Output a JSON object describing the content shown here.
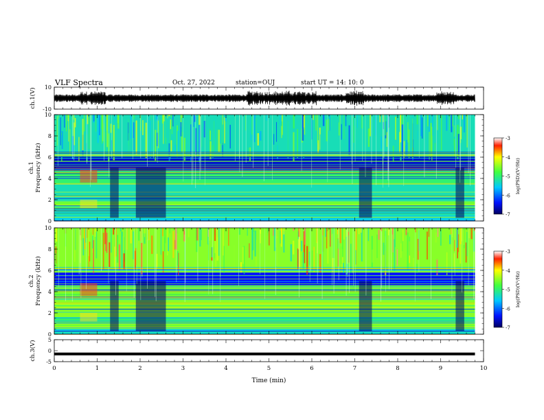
{
  "header": {
    "title": "VLF Spectra",
    "date": "Oct. 27, 2022",
    "station": "station=OUJ",
    "start": "start  UT =  14: 10: 0"
  },
  "chart_data": [
    {
      "type": "line",
      "name": "ch1-waveform",
      "ylabel": "ch.1(V)",
      "ylim": [
        -10,
        10
      ],
      "yticks": [
        "10",
        "-10"
      ],
      "xlim": [
        0,
        10
      ],
      "notes": "noisy VLF waveform, amplitude mostly about ±3 V with bursts near 1 min, 4.5–6 min and 7 min"
    },
    {
      "type": "heatmap",
      "name": "ch1-spectrogram",
      "ylabel": "ch.1\nFrequency  (kHz)",
      "ylim": [
        0,
        10
      ],
      "yticks": [
        "0",
        "2",
        "4",
        "6",
        "8",
        "10"
      ],
      "xlim": [
        0,
        9.8
      ],
      "colorbar": {
        "label": "log(PSD)(V²/Hz)",
        "range": [
          -7,
          -3
        ],
        "ticks": [
          "-3",
          "-4",
          "-5",
          "-6",
          "-7"
        ]
      },
      "bands": [
        {
          "freq": [
            0,
            0.5
          ],
          "value": -5.5
        },
        {
          "freq": [
            1.2,
            1.8
          ],
          "value": -4.6
        },
        {
          "freq": [
            3.5,
            4.7
          ],
          "value": -5.0
        },
        {
          "freq": [
            4.7,
            6.0
          ],
          "value": -6.6
        },
        {
          "freq": [
            6.0,
            10.0
          ],
          "value": -5.3
        }
      ]
    },
    {
      "type": "heatmap",
      "name": "ch2-spectrogram",
      "ylabel": "ch.2\nFrequency  (kHz)",
      "ylim": [
        0,
        10
      ],
      "yticks": [
        "0",
        "2",
        "4",
        "6",
        "8",
        "10"
      ],
      "xlim": [
        0,
        9.8
      ],
      "colorbar": {
        "label": "log(PSD)(V²/Hz)",
        "range": [
          -7,
          -3
        ],
        "ticks": [
          "-3",
          "-4",
          "-5",
          "-6",
          "-7"
        ]
      },
      "bands": [
        {
          "freq": [
            0,
            0.5
          ],
          "value": -5.4
        },
        {
          "freq": [
            1.0,
            1.6
          ],
          "value": -5.0
        },
        {
          "freq": [
            3.6,
            4.6
          ],
          "value": -4.6
        },
        {
          "freq": [
            4.6,
            5.8
          ],
          "value": -6.4
        },
        {
          "freq": [
            5.8,
            10.0
          ],
          "value": -4.5
        }
      ]
    },
    {
      "type": "line",
      "name": "ch3-level",
      "ylabel": "ch.3(V)",
      "ylim": [
        -5,
        5
      ],
      "yticks": [
        "5",
        "0",
        "-5"
      ],
      "xlim": [
        0,
        9.8
      ],
      "values": [
        -1.5
      ],
      "notes": "flat thick line at about -1.5 V"
    }
  ],
  "xaxis": {
    "label": "Time  (min)",
    "range": [
      0,
      10
    ],
    "ticks": [
      "0",
      "1",
      "2",
      "3",
      "4",
      "5",
      "6",
      "7",
      "8",
      "9",
      "10"
    ]
  }
}
